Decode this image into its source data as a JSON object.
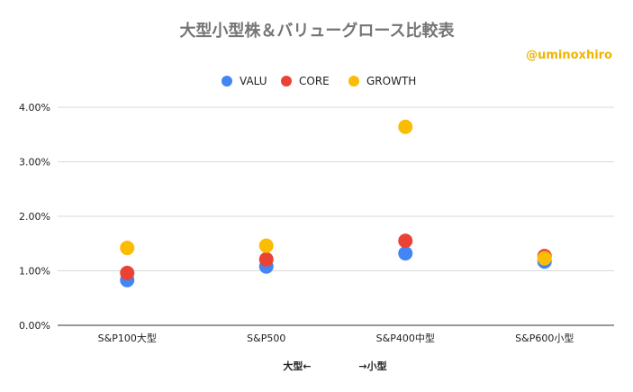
{
  "chart_data": {
    "type": "scatter",
    "title": "大型小型株＆バリューグロース比較表",
    "watermark": "@uminoxhiro",
    "xlabel_left": "大型←",
    "xlabel_right": "→小型",
    "categories": [
      "S&P100大型",
      "S&P500",
      "S&P400中型",
      "S&P600小型"
    ],
    "ylim": [
      0,
      4
    ],
    "yticks": [
      {
        "value": 0,
        "label": "0.00%"
      },
      {
        "value": 1,
        "label": "1.00%"
      },
      {
        "value": 2,
        "label": "2.00%"
      },
      {
        "value": 3,
        "label": "3.00%"
      },
      {
        "value": 4,
        "label": "4.00%"
      }
    ],
    "grid": true,
    "legend_position": "top-center",
    "series": [
      {
        "name": "VALU",
        "color": "#4285f4",
        "values": [
          0.83,
          1.08,
          1.32,
          1.17
        ]
      },
      {
        "name": "CORE",
        "color": "#ea4335",
        "values": [
          0.96,
          1.21,
          1.55,
          1.27
        ]
      },
      {
        "name": "GROWTH",
        "color": "#fbbc04",
        "values": [
          1.42,
          1.46,
          3.64,
          1.23
        ]
      }
    ]
  }
}
